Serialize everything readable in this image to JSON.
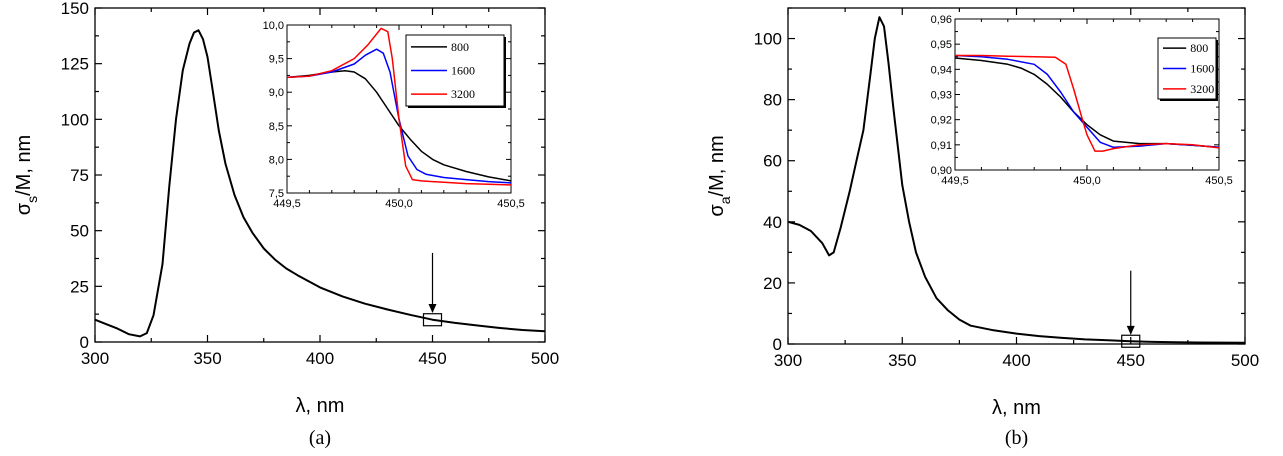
{
  "chart_data": [
    {
      "type": "line",
      "panel_label": "(a)",
      "xlabel": "λ, nm",
      "ylabel": {
        "base": "σ",
        "sub": "s",
        "rest": "/M, nm"
      },
      "xlim": [
        300,
        500
      ],
      "ylim": [
        0,
        150
      ],
      "xticks": [
        300,
        350,
        400,
        450,
        500
      ],
      "yticks": [
        0,
        25,
        50,
        75,
        100,
        125,
        150
      ],
      "series": [
        {
          "color": "#000000",
          "x": [
            300,
            305,
            310,
            315,
            320,
            323,
            326,
            330,
            333,
            336,
            339,
            342,
            344,
            346,
            348,
            350,
            352,
            355,
            358,
            362,
            366,
            370,
            375,
            380,
            385,
            390,
            400,
            410,
            420,
            430,
            440,
            450,
            460,
            470,
            480,
            490,
            500
          ],
          "y": [
            10,
            8,
            6,
            3.5,
            2.5,
            4,
            12,
            35,
            70,
            100,
            122,
            134,
            139,
            140,
            136,
            128,
            115,
            95,
            80,
            66,
            56,
            49,
            42,
            37,
            33,
            30,
            24.5,
            20.5,
            17.2,
            14.6,
            12.2,
            10,
            8.6,
            7.4,
            6.3,
            5.4,
            4.8
          ]
        }
      ],
      "marker_box": {
        "x": 450,
        "y": 10
      },
      "arrow": {
        "x": 450,
        "from_y": 40,
        "to_y": 13
      },
      "inset": {
        "xlim": [
          449.5,
          450.5
        ],
        "ylim": [
          7.5,
          10.0
        ],
        "xticks": [
          449.5,
          450.0,
          450.5
        ],
        "yticks": [
          7.5,
          8.0,
          8.5,
          9.0,
          9.5,
          10.0
        ],
        "xtick_labels": [
          "449,5",
          "450,0",
          "450,5"
        ],
        "ytick_labels": [
          "7,5",
          "8,0",
          "8,5",
          "9,0",
          "9,5",
          "10,0"
        ],
        "legend": [
          "800",
          "1600",
          "3200"
        ],
        "series": [
          {
            "name": "800",
            "color": "#000000",
            "x": [
              449.5,
              449.6,
              449.7,
              449.76,
              449.8,
              449.85,
              449.9,
              449.95,
              450.0,
              450.05,
              450.1,
              450.15,
              450.2,
              450.3,
              450.4,
              450.5
            ],
            "y": [
              9.22,
              9.25,
              9.3,
              9.32,
              9.3,
              9.2,
              9.0,
              8.75,
              8.5,
              8.3,
              8.12,
              8.0,
              7.92,
              7.82,
              7.74,
              7.68
            ]
          },
          {
            "name": "1600",
            "color": "#0000ff",
            "x": [
              449.5,
              449.6,
              449.7,
              449.8,
              449.85,
              449.9,
              449.93,
              449.96,
              450.0,
              450.04,
              450.08,
              450.12,
              450.2,
              450.3,
              450.4,
              450.5
            ],
            "y": [
              9.22,
              9.24,
              9.3,
              9.42,
              9.55,
              9.64,
              9.58,
              9.3,
              8.6,
              8.05,
              7.85,
              7.78,
              7.73,
              7.7,
              7.67,
              7.65
            ]
          },
          {
            "name": "3200",
            "color": "#ff0000",
            "x": [
              449.5,
              449.6,
              449.7,
              449.8,
              449.86,
              449.92,
              449.95,
              449.97,
              450.0,
              450.03,
              450.06,
              450.1,
              450.15,
              450.2,
              450.3,
              450.4,
              450.5
            ],
            "y": [
              9.22,
              9.24,
              9.32,
              9.5,
              9.7,
              9.95,
              9.9,
              9.5,
              8.6,
              7.9,
              7.7,
              7.68,
              7.67,
              7.66,
              7.64,
              7.63,
              7.62
            ]
          }
        ]
      }
    },
    {
      "type": "line",
      "panel_label": "(b)",
      "xlabel": "λ, nm",
      "ylabel": {
        "base": "σ",
        "sub": "a",
        "rest": "/M, nm"
      },
      "xlim": [
        300,
        500
      ],
      "ylim": [
        0,
        110
      ],
      "xticks": [
        300,
        350,
        400,
        450,
        500
      ],
      "yticks": [
        0,
        20,
        40,
        60,
        80,
        100
      ],
      "series": [
        {
          "color": "#000000",
          "x": [
            300,
            305,
            310,
            315,
            318,
            320,
            323,
            327,
            330,
            333,
            336,
            338,
            340,
            342,
            344,
            346,
            348,
            350,
            353,
            356,
            360,
            365,
            370,
            375,
            380,
            390,
            400,
            410,
            420,
            430,
            440,
            450,
            460,
            470,
            480,
            490,
            500
          ],
          "y": [
            40,
            39,
            37,
            33,
            29,
            30,
            38,
            50,
            60,
            70,
            88,
            100,
            107,
            104,
            92,
            78,
            65,
            52,
            40,
            30,
            22,
            15,
            11,
            8,
            6,
            4.5,
            3.4,
            2.6,
            2.0,
            1.5,
            1.2,
            0.9,
            0.7,
            0.6,
            0.5,
            0.45,
            0.4
          ]
        }
      ],
      "marker_box": {
        "x": 450,
        "y": 0.9
      },
      "arrow": {
        "x": 450,
        "from_y": 24,
        "to_y": 3
      },
      "inset": {
        "xlim": [
          449.5,
          450.5
        ],
        "ylim": [
          0.9,
          0.96
        ],
        "xticks": [
          449.5,
          450.0,
          450.5
        ],
        "yticks": [
          0.9,
          0.91,
          0.92,
          0.93,
          0.94,
          0.95,
          0.96
        ],
        "xtick_labels": [
          "449,5",
          "450,0",
          "450,5"
        ],
        "ytick_labels": [
          "0,90",
          "0,91",
          "0,92",
          "0,93",
          "0,94",
          "0,95",
          "0,96"
        ],
        "legend": [
          "800",
          "1600",
          "3200"
        ],
        "series": [
          {
            "name": "800",
            "color": "#000000",
            "x": [
              449.5,
              449.6,
              449.7,
              449.75,
              449.8,
              449.85,
              449.9,
              449.95,
              450.0,
              450.05,
              450.1,
              450.2,
              450.3,
              450.4,
              450.5
            ],
            "y": [
              0.9445,
              0.9435,
              0.942,
              0.9405,
              0.938,
              0.934,
              0.929,
              0.923,
              0.918,
              0.914,
              0.9115,
              0.9105,
              0.9105,
              0.9098,
              0.909
            ]
          },
          {
            "name": "1600",
            "color": "#0000ff",
            "x": [
              449.5,
              449.6,
              449.7,
              449.8,
              449.85,
              449.9,
              449.95,
              450.0,
              450.05,
              450.1,
              450.2,
              450.3,
              450.4,
              450.5
            ],
            "y": [
              0.9455,
              0.945,
              0.944,
              0.942,
              0.938,
              0.931,
              0.923,
              0.917,
              0.911,
              0.909,
              0.9095,
              0.9105,
              0.9098,
              0.909
            ]
          },
          {
            "name": "3200",
            "color": "#ff0000",
            "x": [
              449.5,
              449.6,
              449.7,
              449.8,
              449.88,
              449.92,
              449.95,
              449.98,
              450.0,
              450.03,
              450.06,
              450.1,
              450.2,
              450.3,
              450.4,
              450.5
            ],
            "y": [
              0.9455,
              0.9455,
              0.9452,
              0.945,
              0.9448,
              0.942,
              0.932,
              0.921,
              0.914,
              0.9075,
              0.9075,
              0.9085,
              0.91,
              0.9105,
              0.91,
              0.9088
            ]
          }
        ]
      }
    }
  ]
}
